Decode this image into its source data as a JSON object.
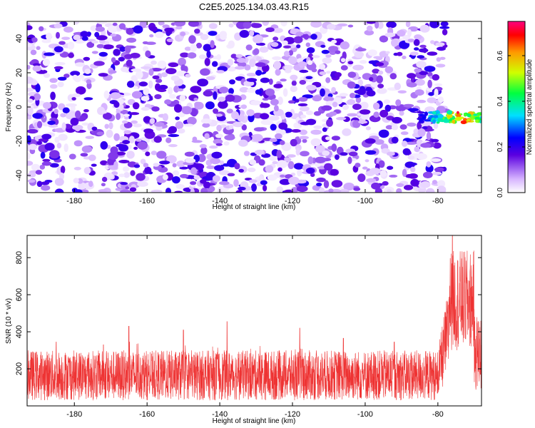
{
  "title": "C2E5.2025.134.03.43.R15",
  "chart_data": [
    {
      "type": "heatmap",
      "xlabel": "Height of straight line (km)",
      "ylabel": "Frequency (Hz)",
      "xlim": [
        -193,
        -68
      ],
      "ylim": [
        -50,
        50
      ],
      "xticks": [
        -180,
        -160,
        -140,
        -120,
        -100,
        -80
      ],
      "yticks": [
        -40,
        -20,
        0,
        20,
        40
      ],
      "colorbar": {
        "label": "Normalized spectral amplitude",
        "range": [
          0,
          0.75
        ],
        "ticks": [
          0.0,
          0.2,
          0.4,
          0.6
        ]
      },
      "features": {
        "background": "broadband noise from -193 to about -78 km, amplitude ~0.0-0.25",
        "signal_band": {
          "x_range": [
            -85,
            -68
          ],
          "freq_center": -6,
          "freq_spread": 6,
          "peak_amplitude": 0.75,
          "peak_x": -74
        },
        "empty_region_x": [
          -78,
          -68
        ]
      },
      "grid": false
    },
    {
      "type": "line",
      "xlabel": "Height of straight line (km)",
      "ylabel": "SNR (10 * v/v)",
      "xlim": [
        -193,
        -68
      ],
      "ylim": [
        0,
        920
      ],
      "xticks": [
        -180,
        -160,
        -140,
        -120,
        -100,
        -80
      ],
      "yticks": [
        200,
        400,
        600,
        800
      ],
      "color": "#ee3333",
      "series_profile": {
        "noise_floor_min": 30,
        "noise_mean": 150,
        "noise_max_typical": 300,
        "occasional_spikes": [
          {
            "x": -185,
            "y": 345
          },
          {
            "x": -172,
            "y": 330
          },
          {
            "x": -165,
            "y": 430
          },
          {
            "x": -150,
            "y": 410
          },
          {
            "x": -138,
            "y": 455
          },
          {
            "x": -118,
            "y": 420
          },
          {
            "x": -106,
            "y": 365
          },
          {
            "x": -92,
            "y": 345
          }
        ],
        "rise_start_x": -80,
        "peak": {
          "x": -76,
          "y": 920
        },
        "high_region": {
          "x_range": [
            -77,
            -70
          ],
          "y_range": [
            300,
            840
          ]
        }
      },
      "grid": false
    }
  ]
}
